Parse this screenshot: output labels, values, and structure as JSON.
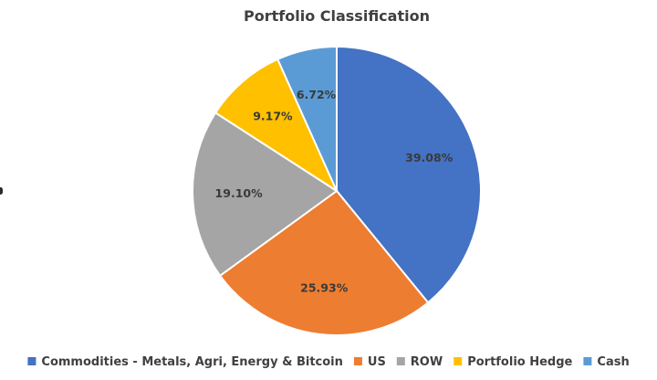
{
  "chart_data": {
    "type": "pie",
    "title": "Portfolio Classification",
    "slices": [
      {
        "label": "Commodities - Metals, Agri, Energy & Bitcoin",
        "value": 39.08,
        "display": "39.08%",
        "color": "#4472C4"
      },
      {
        "label": "US",
        "value": 25.93,
        "display": "25.93%",
        "color": "#ED7D31"
      },
      {
        "label": "ROW",
        "value": 19.1,
        "display": "19.10%",
        "color": "#A5A5A5"
      },
      {
        "label": "Portfolio Hedge",
        "value": 9.17,
        "display": "9.17%",
        "color": "#FFC000"
      },
      {
        "label": "Cash",
        "value": 6.72,
        "display": "6.72%",
        "color": "#5B9BD5"
      }
    ],
    "start_angle": "12 o'clock",
    "direction": "clockwise",
    "legend_position": "bottom",
    "data_labels": "inside"
  }
}
